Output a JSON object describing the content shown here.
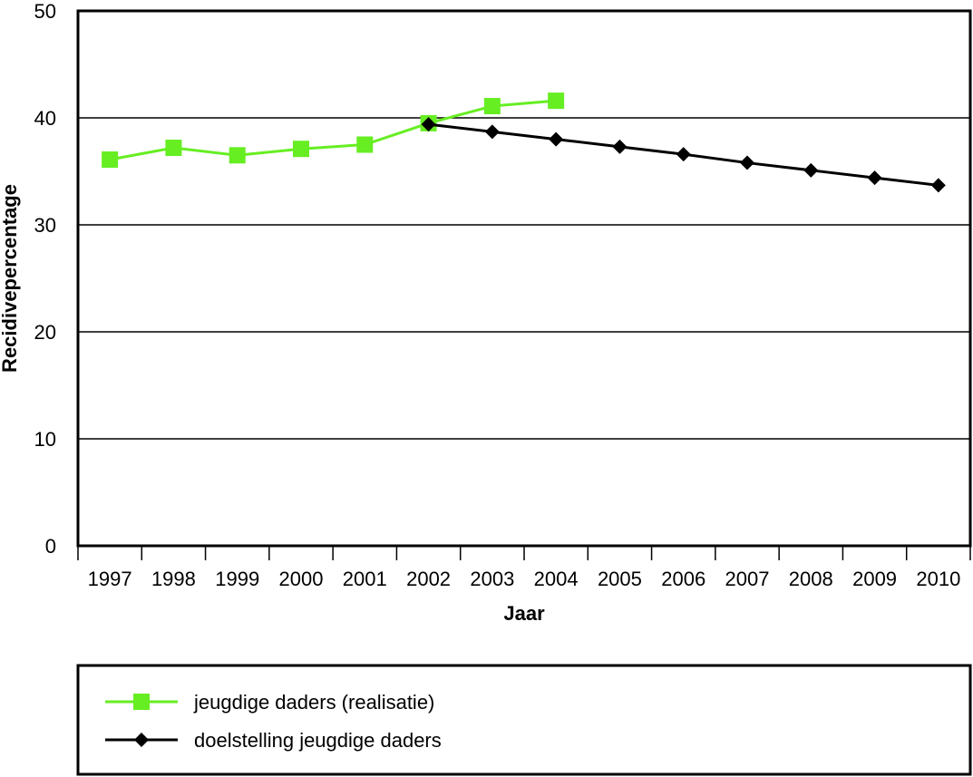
{
  "chart_data": {
    "type": "line",
    "title": "",
    "xlabel": "Jaar",
    "ylabel": "Recidivepercentage",
    "categories": [
      "1997",
      "1998",
      "1999",
      "2000",
      "2001",
      "2002",
      "2003",
      "2004",
      "2005",
      "2006",
      "2007",
      "2008",
      "2009",
      "2010"
    ],
    "ylim": [
      0,
      50
    ],
    "yticks": [
      0,
      10,
      20,
      30,
      40,
      50
    ],
    "grid": true,
    "legend_position": "bottom",
    "series": [
      {
        "name": "jeugdige daders (realisatie)",
        "marker": "square",
        "color": "#66ee22",
        "values": [
          36.1,
          37.2,
          36.5,
          37.1,
          37.5,
          39.5,
          41.1,
          41.6,
          null,
          null,
          null,
          null,
          null,
          null
        ]
      },
      {
        "name": "doelstelling jeugdige daders",
        "marker": "diamond",
        "color": "#000000",
        "values": [
          null,
          null,
          null,
          null,
          null,
          39.4,
          38.7,
          38.0,
          37.3,
          36.6,
          35.8,
          35.1,
          34.4,
          33.7
        ]
      }
    ]
  }
}
